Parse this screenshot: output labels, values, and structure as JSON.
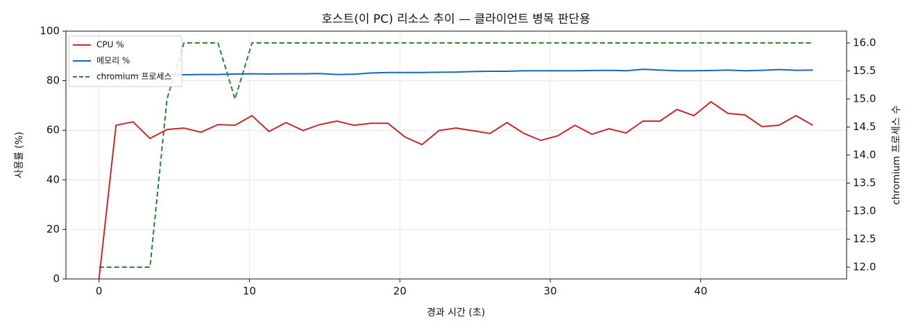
{
  "chart_data": {
    "type": "line",
    "title": "호스트(이 PC) 리소스 추이 — 클라이언트 병목 판단용",
    "x_label": "경과 시간 (초)",
    "y_label": "사용률 (%)",
    "y2_label": "chromium 프로세스 수",
    "x": [
      0,
      1.13,
      2.26,
      3.39,
      4.52,
      5.65,
      6.78,
      7.91,
      9.04,
      10.17,
      11.3,
      12.43,
      13.56,
      14.69,
      15.82,
      16.95,
      18.08,
      19.21,
      20.34,
      21.47,
      22.6,
      23.73,
      24.86,
      25.99,
      27.12,
      28.25,
      29.38,
      30.51,
      31.64,
      32.77,
      33.9,
      35.03,
      36.16,
      37.29,
      38.42,
      39.55,
      40.68,
      41.81,
      42.94,
      44.07,
      45.2,
      46.33,
      47.46
    ],
    "series": [
      {
        "name": "CPU %",
        "color": "#c62828",
        "linestyle": "solid",
        "values": [
          0,
          62,
          63.4,
          56.7,
          60.3,
          60.9,
          59.2,
          62.3,
          62,
          65.9,
          59.5,
          63.1,
          59.9,
          62.3,
          63.7,
          62,
          62.8,
          62.8,
          57.3,
          54.2,
          59.9,
          60.9,
          59.8,
          58.7,
          63.1,
          58.7,
          55.9,
          57.8,
          62,
          58.4,
          60.6,
          58.9,
          63.7,
          63.7,
          68.4,
          65.9,
          71.5,
          66.8,
          66.2,
          61.5,
          62,
          65.9,
          62
        ]
      },
      {
        "name": "메모리 %",
        "color": "#1565c0",
        "linestyle": "solid",
        "values": [
          82.3,
          82.3,
          82.3,
          82.3,
          82.4,
          82.4,
          82.5,
          82.5,
          82.7,
          82.8,
          82.7,
          82.8,
          82.8,
          82.9,
          82.5,
          82.6,
          83.1,
          83.3,
          83.3,
          83.3,
          83.4,
          83.5,
          83.7,
          83.8,
          83.8,
          84.0,
          84.0,
          84.0,
          84.0,
          84.1,
          84.2,
          84.0,
          84.6,
          84.3,
          84.0,
          84.0,
          84.1,
          84.3,
          84.0,
          84.2,
          84.5,
          84.2,
          84.3
        ]
      },
      {
        "name": "chromium 프로세스",
        "color": "#2e7d32",
        "linestyle": "dashed",
        "axis": "y2",
        "values": [
          12,
          12,
          12,
          12,
          15,
          16,
          16,
          16,
          15,
          16,
          16,
          16,
          16,
          16,
          16,
          16,
          16,
          16,
          16,
          16,
          16,
          16,
          16,
          16,
          16,
          16,
          16,
          16,
          16,
          16,
          16,
          16,
          16,
          16,
          16,
          16,
          16,
          16,
          16,
          16,
          16,
          16,
          16
        ]
      }
    ],
    "xlim": [
      -2.2,
      49.7
    ],
    "xticks": [
      0,
      10,
      20,
      30,
      40
    ],
    "ylim": [
      0,
      100
    ],
    "yticks": [
      0,
      20,
      40,
      60,
      80,
      100
    ],
    "y2lim": [
      11.79,
      16.21
    ],
    "y2ticks": [
      {
        "value": 12,
        "label": "12.0"
      },
      {
        "value": 12.5,
        "label": "12.5"
      },
      {
        "value": 13,
        "label": "13.0"
      },
      {
        "value": 13.5,
        "label": "13.5"
      },
      {
        "value": 14,
        "label": "14.0"
      },
      {
        "value": 14.5,
        "label": "14.5"
      },
      {
        "value": 15,
        "label": "15.0"
      },
      {
        "value": 15.5,
        "label": "15.5"
      },
      {
        "value": 16,
        "label": "16.0"
      }
    ],
    "grid": true,
    "legend": "upper-left"
  }
}
